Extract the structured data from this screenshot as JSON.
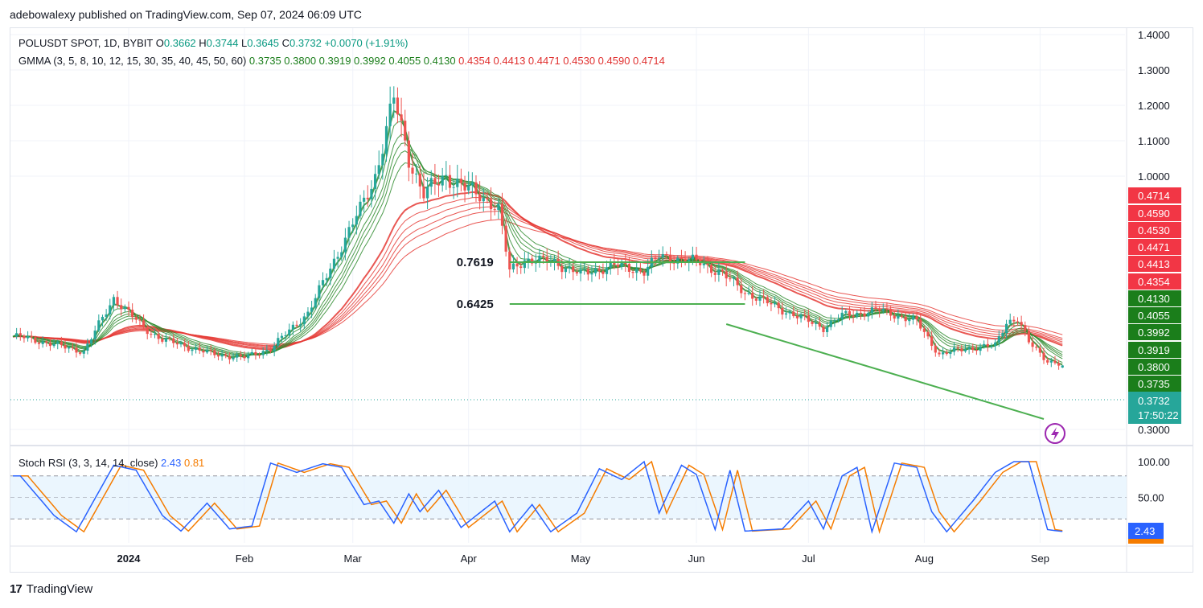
{
  "header": {
    "text": "adebowalexy published on TradingView.com, Sep 07, 2024 06:09 UTC"
  },
  "footer": {
    "brand": "TradingView"
  },
  "legend": {
    "symbol": "POLUSDT SPOT, 1D, BYBIT",
    "ohlc": [
      {
        "k": "O",
        "v": "0.3662"
      },
      {
        "k": "H",
        "v": "0.3744"
      },
      {
        "k": "L",
        "v": "0.3645"
      },
      {
        "k": "C",
        "v": "0.3732"
      }
    ],
    "change": "+0.0070 (+1.91%)",
    "gmma_label": "GMMA (3, 5, 8, 10, 12, 15, 30, 35, 40, 45, 50, 60)",
    "gmma_values": [
      "0.3735",
      "0.3800",
      "0.3919",
      "0.3992",
      "0.4055",
      "0.4130",
      "0.4354",
      "0.4413",
      "0.4471",
      "0.4530",
      "0.4590",
      "0.4714"
    ],
    "stoch_label": "Stoch RSI (3, 3, 14, 14, close)",
    "stoch_k": "2.43",
    "stoch_d": "0.81"
  },
  "colors": {
    "up": "#26a69a",
    "down": "#ef5350",
    "gmma_short": "#2e8b2e",
    "gmma_long": "#e53935",
    "k_line": "#2962ff",
    "d_line": "#f57c00",
    "trend": "#4caf50",
    "price_tag": "#26a69a",
    "band_fill": "#e3f2fd"
  },
  "chart_data": [
    {
      "type": "candlestick",
      "title": "POLUSDT SPOT, 1D, BYBIT",
      "x_ticks": [
        "2024",
        "Feb",
        "Mar",
        "Apr",
        "May",
        "Jun",
        "Jul",
        "Aug",
        "Sep"
      ],
      "y_ticks": [
        "1.4000",
        "1.3000",
        "1.2000",
        "1.1000",
        "1.0000",
        "0.3000"
      ],
      "keypoints": [
        {
          "d": "Dec 03",
          "c": 0.47
        },
        {
          "d": "Dec 20",
          "c": 0.42
        },
        {
          "d": "Dec 28",
          "c": 0.6
        },
        {
          "d": "Jan 05",
          "c": 0.5
        },
        {
          "d": "Jan 10",
          "c": 0.46
        },
        {
          "d": "Jan 24",
          "c": 0.41
        },
        {
          "d": "Feb 01",
          "c": 0.4
        },
        {
          "d": "Feb 08",
          "c": 0.43
        },
        {
          "d": "Feb 18",
          "c": 0.55
        },
        {
          "d": "Feb 28",
          "c": 0.8
        },
        {
          "d": "Mar 07",
          "c": 1.0
        },
        {
          "d": "Mar 12",
          "c": 1.22
        },
        {
          "d": "Mar 16",
          "c": 1.05
        },
        {
          "d": "Mar 20",
          "c": 0.95
        },
        {
          "d": "Mar 26",
          "c": 1.0
        },
        {
          "d": "Apr 06",
          "c": 0.93
        },
        {
          "d": "Apr 09",
          "c": 0.9
        },
        {
          "d": "Apr 12",
          "c": 0.69
        },
        {
          "d": "Apr 16",
          "c": 0.73
        },
        {
          "d": "Apr 24",
          "c": 0.72
        },
        {
          "d": "May 01",
          "c": 0.68
        },
        {
          "d": "May 10",
          "c": 0.71
        },
        {
          "d": "May 18",
          "c": 0.69
        },
        {
          "d": "May 22",
          "c": 0.74
        },
        {
          "d": "Jun 02",
          "c": 0.72
        },
        {
          "d": "Jun 08",
          "c": 0.68
        },
        {
          "d": "Jun 14",
          "c": 0.62
        },
        {
          "d": "Jun 24",
          "c": 0.56
        },
        {
          "d": "Jul 05",
          "c": 0.5
        },
        {
          "d": "Jul 10",
          "c": 0.54
        },
        {
          "d": "Jul 20",
          "c": 0.56
        },
        {
          "d": "Jul 30",
          "c": 0.52
        },
        {
          "d": "Aug 05",
          "c": 0.41
        },
        {
          "d": "Aug 12",
          "c": 0.43
        },
        {
          "d": "Aug 20",
          "c": 0.44
        },
        {
          "d": "Aug 23",
          "c": 0.52
        },
        {
          "d": "Aug 26",
          "c": 0.53
        },
        {
          "d": "Aug 29",
          "c": 0.45
        },
        {
          "d": "Sep 03",
          "c": 0.39
        },
        {
          "d": "Sep 07",
          "c": 0.3732
        }
      ],
      "annotations": [
        {
          "label": "0.7619",
          "from": "Apr 12",
          "to": "Jun 14"
        },
        {
          "label": "0.6425",
          "from": "Apr 12",
          "to": "Jun 14"
        }
      ],
      "price_labels": [
        "0.4714",
        "0.4590",
        "0.4530",
        "0.4471",
        "0.4413",
        "0.4354",
        "0.4130",
        "0.4055",
        "0.3992",
        "0.3919",
        "0.3800",
        "0.3735"
      ],
      "current_price": "0.3732",
      "countdown": "17:50:22",
      "last_ohlc": {
        "open": 0.3662,
        "high": 0.3744,
        "low": 0.3645,
        "close": 0.3732
      }
    },
    {
      "type": "line",
      "title": "Stoch RSI (3, 3, 14, 14, close)",
      "y_ticks": [
        "100.00",
        "50.00"
      ],
      "band": [
        20,
        80
      ],
      "series": [
        {
          "name": "K",
          "keypoints": [
            {
              "d": "Dec 03",
              "v": 80
            },
            {
              "d": "Dec 12",
              "v": 25
            },
            {
              "d": "Dec 18",
              "v": 2
            },
            {
              "d": "Dec 28",
              "v": 95
            },
            {
              "d": "Jan 03",
              "v": 88
            },
            {
              "d": "Jan 10",
              "v": 25
            },
            {
              "d": "Jan 15",
              "v": 3
            },
            {
              "d": "Jan 22",
              "v": 42
            },
            {
              "d": "Jan 28",
              "v": 6
            },
            {
              "d": "Feb 03",
              "v": 10
            },
            {
              "d": "Feb 08",
              "v": 98
            },
            {
              "d": "Feb 15",
              "v": 85
            },
            {
              "d": "Feb 22",
              "v": 97
            },
            {
              "d": "Feb 27",
              "v": 92
            },
            {
              "d": "Mar 04",
              "v": 40
            },
            {
              "d": "Mar 08",
              "v": 45
            },
            {
              "d": "Mar 12",
              "v": 14
            },
            {
              "d": "Mar 16",
              "v": 55
            },
            {
              "d": "Mar 19",
              "v": 30
            },
            {
              "d": "Mar 24",
              "v": 60
            },
            {
              "d": "Mar 30",
              "v": 8
            },
            {
              "d": "Apr 08",
              "v": 45
            },
            {
              "d": "Apr 12",
              "v": 2
            },
            {
              "d": "Apr 18",
              "v": 40
            },
            {
              "d": "Apr 23",
              "v": 2
            },
            {
              "d": "Apr 30",
              "v": 28
            },
            {
              "d": "May 06",
              "v": 90
            },
            {
              "d": "May 12",
              "v": 75
            },
            {
              "d": "May 18",
              "v": 100
            },
            {
              "d": "May 22",
              "v": 28
            },
            {
              "d": "May 28",
              "v": 95
            },
            {
              "d": "Jun 01",
              "v": 82
            },
            {
              "d": "Jun 06",
              "v": 5
            },
            {
              "d": "Jun 10",
              "v": 88
            },
            {
              "d": "Jun 14",
              "v": 3
            },
            {
              "d": "Jun 24",
              "v": 6
            },
            {
              "d": "Jul 01",
              "v": 45
            },
            {
              "d": "Jul 05",
              "v": 6
            },
            {
              "d": "Jul 10",
              "v": 80
            },
            {
              "d": "Jul 14",
              "v": 92
            },
            {
              "d": "Jul 18",
              "v": 2
            },
            {
              "d": "Jul 24",
              "v": 98
            },
            {
              "d": "Jul 30",
              "v": 92
            },
            {
              "d": "Aug 03",
              "v": 30
            },
            {
              "d": "Aug 07",
              "v": 2
            },
            {
              "d": "Aug 14",
              "v": 45
            },
            {
              "d": "Aug 20",
              "v": 85
            },
            {
              "d": "Aug 25",
              "v": 100
            },
            {
              "d": "Aug 29",
              "v": 100
            },
            {
              "d": "Sep 03",
              "v": 5
            },
            {
              "d": "Sep 07",
              "v": 2.43
            }
          ]
        },
        {
          "name": "D",
          "lag_days": 2
        }
      ]
    }
  ]
}
